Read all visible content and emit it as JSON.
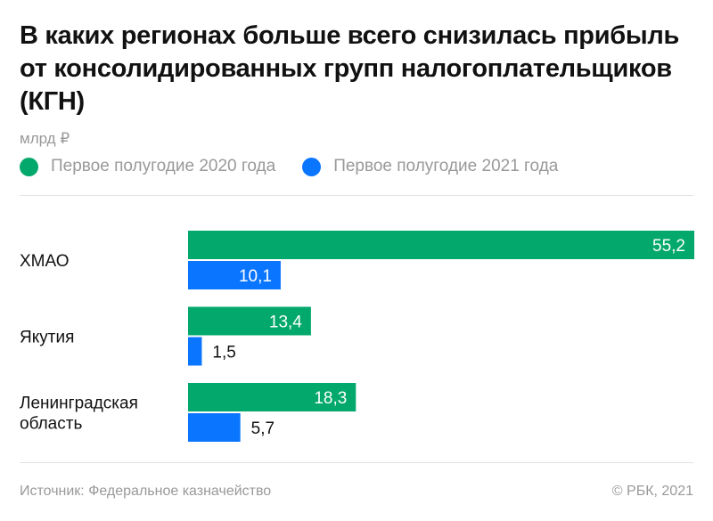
{
  "chart_data": {
    "type": "bar",
    "orientation": "horizontal",
    "title": "В каких регионах больше всего снизилась прибыль от консолидированных групп налогоплательщиков (КГН)",
    "unit": "млрд ₽",
    "categories": [
      [
        "ХМАО"
      ],
      [
        "Якутия"
      ],
      [
        "Ленинградская",
        "область"
      ]
    ],
    "series": [
      {
        "name": "Первое полугодие 2020 года",
        "color": "#02a86c",
        "values": [
          55.2,
          13.4,
          18.3
        ],
        "labels": [
          "55,2",
          "13,4",
          "18,3"
        ]
      },
      {
        "name": "Первое полугодие 2021 года",
        "color": "#0a75ff",
        "values": [
          10.1,
          1.5,
          5.7
        ],
        "labels": [
          "10,1",
          "1,5",
          "5,7"
        ]
      }
    ],
    "xlim": [
      0,
      55.2
    ],
    "grid": false,
    "legend": "top-left"
  },
  "footer": {
    "source": "Источник:  Федеральное казначейство",
    "copyright": "©  РБК, 2021"
  }
}
